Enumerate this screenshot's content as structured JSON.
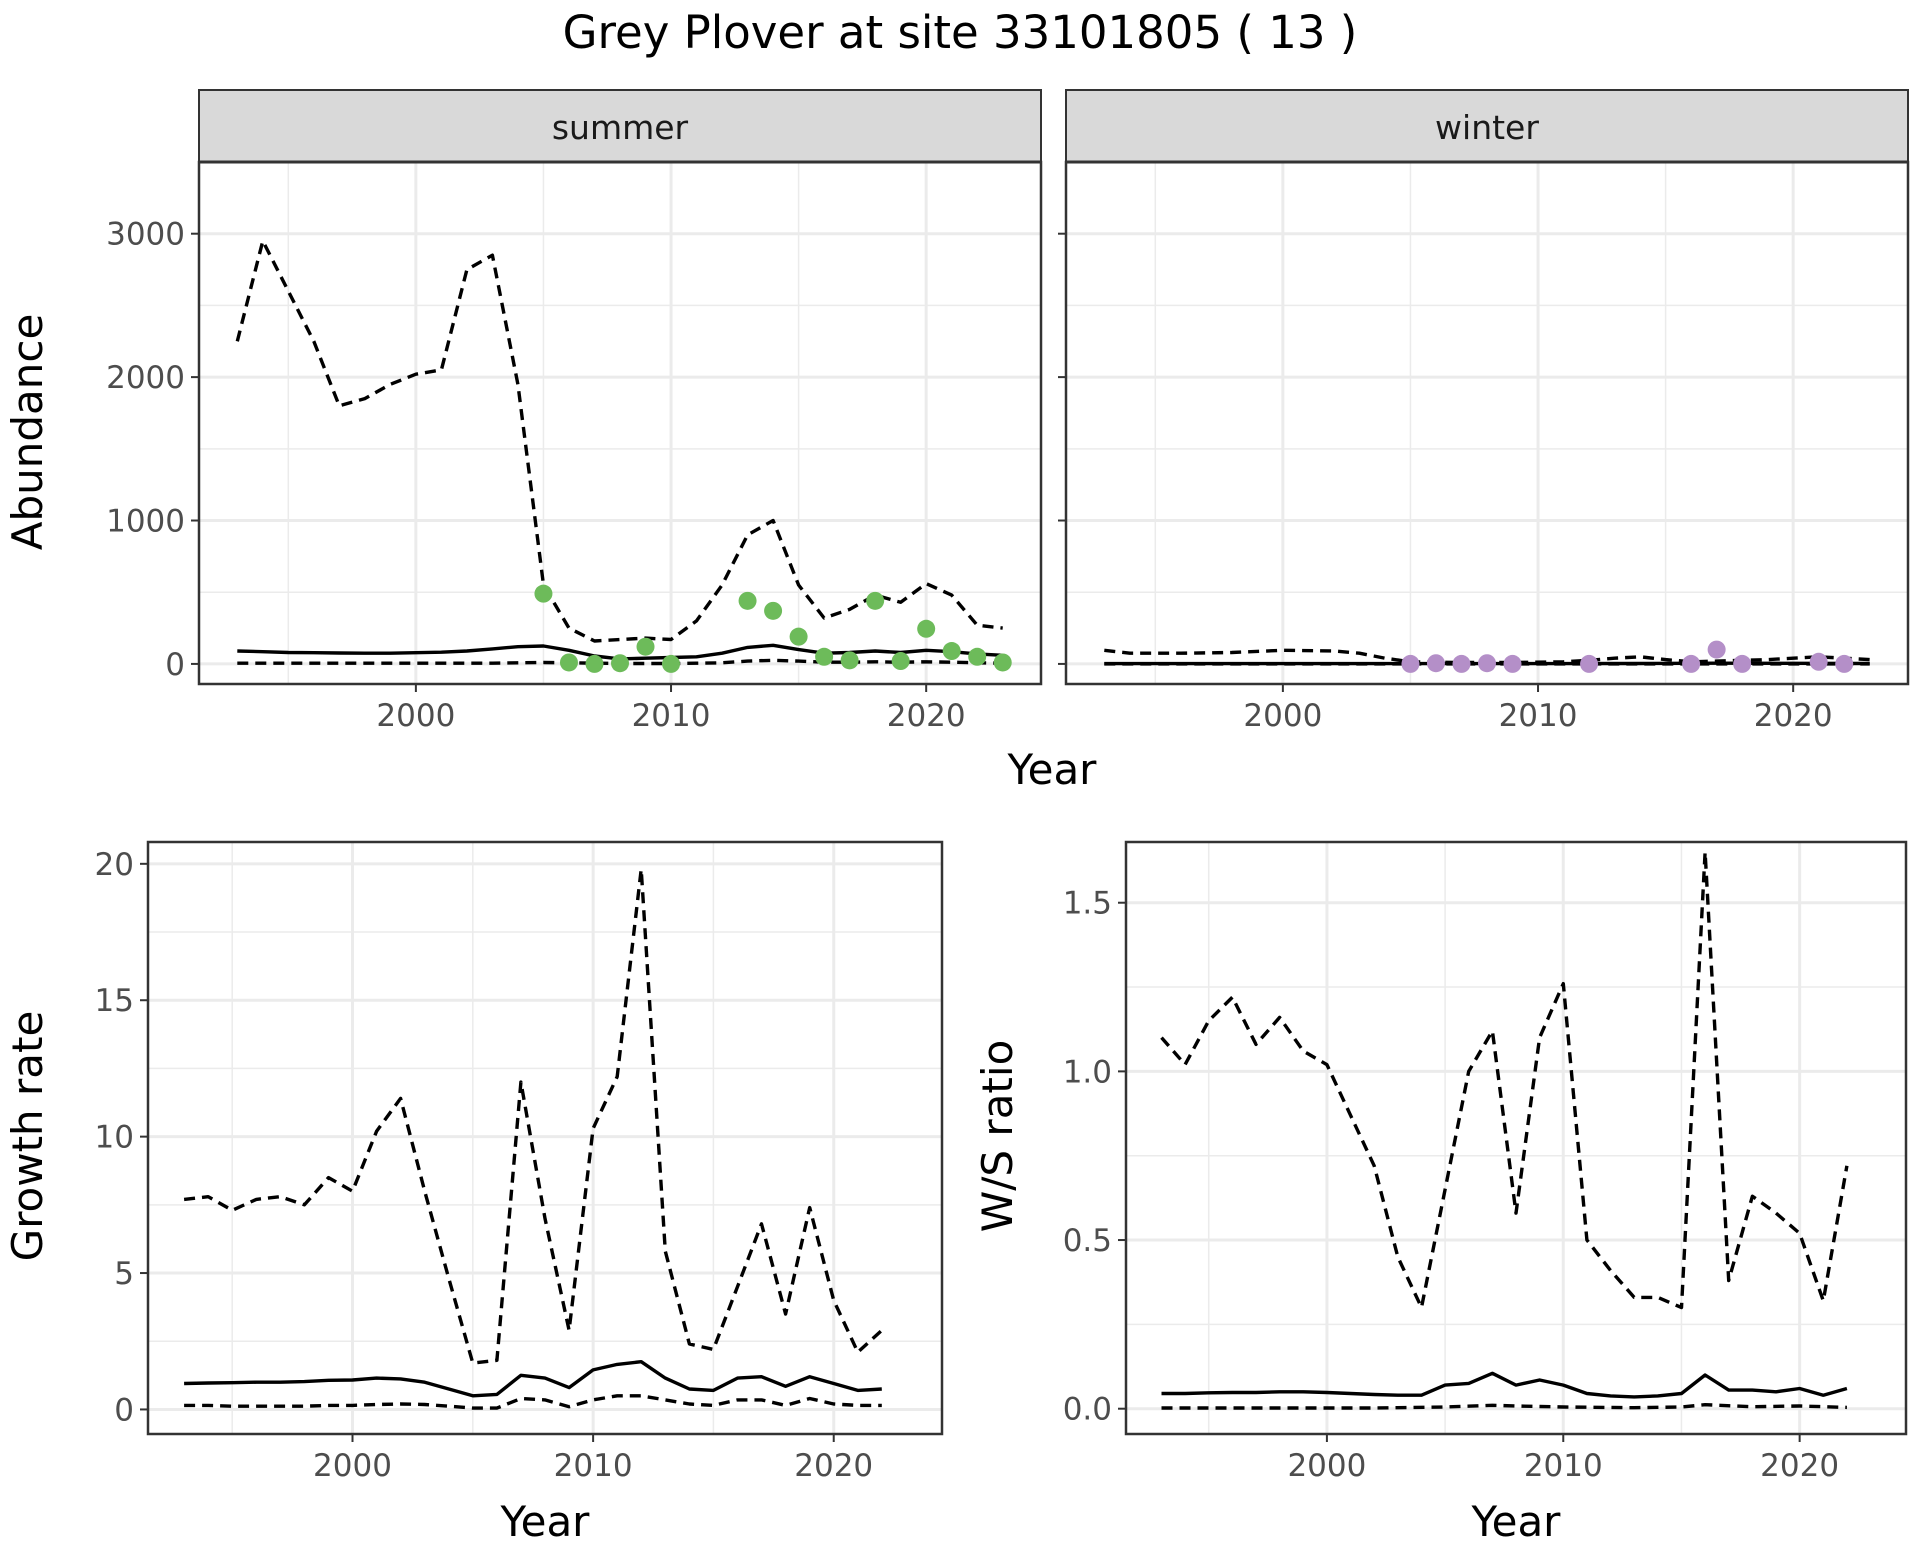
{
  "title": "Grey Plover at site 33101805 ( 13 )",
  "colors": {
    "summer_points": "#6dbb5a",
    "winter_points": "#b48fc8",
    "line": "#000000",
    "strip": "#d9d9d9",
    "grid": "#ebebeb"
  },
  "chart_data": [
    {
      "type": "line",
      "panel": "summer",
      "strip_label": "summer",
      "xlabel": "Year",
      "ylabel": "Abundance",
      "xlim": [
        1991.5,
        2024.5
      ],
      "ylim": [
        -140,
        3500
      ],
      "x_ticks": [
        2000,
        2010,
        2020
      ],
      "x_tick_labels": [
        "2000",
        "2010",
        "2020"
      ],
      "y_ticks": [
        0,
        1000,
        2000,
        3000
      ],
      "y_tick_labels": [
        "0",
        "1000",
        "2000",
        "3000"
      ],
      "series": [
        {
          "style": "solid",
          "x": [
            1993,
            1994,
            1995,
            1996,
            1997,
            1998,
            1999,
            2000,
            2001,
            2002,
            2003,
            2004,
            2005,
            2006,
            2007,
            2008,
            2009,
            2010,
            2011,
            2012,
            2013,
            2014,
            2015,
            2016,
            2017,
            2018,
            2019,
            2020,
            2021,
            2022,
            2023
          ],
          "values": [
            90,
            85,
            80,
            78,
            76,
            75,
            75,
            78,
            82,
            90,
            105,
            120,
            125,
            95,
            55,
            35,
            40,
            45,
            50,
            75,
            115,
            130,
            100,
            75,
            80,
            90,
            80,
            95,
            85,
            70,
            60
          ]
        },
        {
          "style": "dashed",
          "x": [
            1993,
            1994,
            1995,
            1996,
            1997,
            1998,
            1999,
            2000,
            2001,
            2002,
            2003,
            2004,
            2005,
            2006,
            2007,
            2008,
            2009,
            2010,
            2011,
            2012,
            2013,
            2014,
            2015,
            2016,
            2017,
            2018,
            2019,
            2020,
            2021,
            2022,
            2023
          ],
          "values": [
            2250,
            2950,
            2600,
            2250,
            1800,
            1850,
            1950,
            2020,
            2050,
            2750,
            2850,
            1950,
            550,
            250,
            160,
            170,
            180,
            170,
            300,
            550,
            900,
            1000,
            550,
            320,
            380,
            480,
            430,
            560,
            480,
            270,
            250
          ]
        },
        {
          "style": "dashed",
          "x": [
            1993,
            1994,
            1995,
            1996,
            1997,
            1998,
            1999,
            2000,
            2001,
            2002,
            2003,
            2004,
            2005,
            2006,
            2007,
            2008,
            2009,
            2010,
            2011,
            2012,
            2013,
            2014,
            2015,
            2016,
            2017,
            2018,
            2019,
            2020,
            2021,
            2022,
            2023
          ],
          "values": [
            5,
            5,
            5,
            5,
            5,
            5,
            5,
            5,
            5,
            5,
            5,
            8,
            10,
            8,
            5,
            3,
            3,
            3,
            5,
            8,
            20,
            25,
            20,
            12,
            12,
            15,
            12,
            15,
            12,
            8,
            5
          ]
        }
      ],
      "points": {
        "x": [
          2005,
          2006,
          2007,
          2008,
          2009,
          2010,
          2013,
          2014,
          2015,
          2016,
          2017,
          2018,
          2019,
          2020,
          2021,
          2022,
          2023
        ],
        "values": [
          490,
          10,
          0,
          5,
          120,
          0,
          440,
          370,
          190,
          50,
          25,
          440,
          20,
          245,
          90,
          50,
          10
        ]
      }
    },
    {
      "type": "line",
      "panel": "winter",
      "strip_label": "winter",
      "xlabel": "Year",
      "ylabel": "Abundance",
      "xlim": [
        1991.5,
        2024.5
      ],
      "ylim": [
        -140,
        3500
      ],
      "x_ticks": [
        2000,
        2010,
        2020
      ],
      "x_tick_labels": [
        "2000",
        "2010",
        "2020"
      ],
      "y_ticks": [
        0,
        1000,
        2000,
        3000
      ],
      "y_tick_labels": [
        "0",
        "1000",
        "2000",
        "3000"
      ],
      "series": [
        {
          "style": "solid",
          "x": [
            1993,
            1996,
            1999,
            2002,
            2005,
            2008,
            2011,
            2014,
            2017,
            2020,
            2023
          ],
          "values": [
            2,
            2,
            2,
            2,
            2,
            2,
            2,
            3,
            5,
            4,
            3
          ]
        },
        {
          "style": "dashed",
          "x": [
            1993,
            1994,
            1996,
            1998,
            2000,
            2002,
            2003,
            2004,
            2005,
            2007,
            2009,
            2011,
            2012,
            2013,
            2014,
            2015,
            2016,
            2017,
            2018,
            2019,
            2020,
            2021,
            2022,
            2023
          ],
          "values": [
            95,
            75,
            75,
            80,
            95,
            90,
            75,
            40,
            15,
            10,
            10,
            15,
            25,
            40,
            50,
            30,
            15,
            20,
            25,
            30,
            40,
            50,
            40,
            30
          ]
        },
        {
          "style": "dashed",
          "x": [
            1993,
            2023
          ],
          "values": [
            0,
            0
          ]
        }
      ],
      "points": {
        "x": [
          2005,
          2006,
          2007,
          2008,
          2009,
          2012,
          2016,
          2017,
          2018,
          2021,
          2022
        ],
        "values": [
          0,
          5,
          0,
          5,
          0,
          0,
          0,
          100,
          0,
          15,
          0
        ]
      }
    },
    {
      "type": "line",
      "panel": "growth",
      "xlabel": "Year",
      "ylabel": "Growth rate",
      "xlim": [
        1991.5,
        2024.5
      ],
      "ylim": [
        -0.9,
        20.8
      ],
      "x_ticks": [
        2000,
        2010,
        2020
      ],
      "x_tick_labels": [
        "2000",
        "2010",
        "2020"
      ],
      "y_ticks": [
        0,
        5,
        10,
        15,
        20
      ],
      "y_tick_labels": [
        "0",
        "5",
        "10",
        "15",
        "20"
      ],
      "series": [
        {
          "style": "solid",
          "x": [
            1993,
            1994,
            1995,
            1996,
            1997,
            1998,
            1999,
            2000,
            2001,
            2002,
            2003,
            2004,
            2005,
            2006,
            2007,
            2008,
            2009,
            2010,
            2011,
            2012,
            2013,
            2014,
            2015,
            2016,
            2017,
            2018,
            2019,
            2020,
            2021,
            2022
          ],
          "values": [
            0.95,
            0.97,
            0.98,
            1.0,
            1.0,
            1.02,
            1.07,
            1.08,
            1.15,
            1.12,
            1.0,
            0.75,
            0.5,
            0.55,
            1.25,
            1.15,
            0.8,
            1.45,
            1.65,
            1.75,
            1.15,
            0.75,
            0.7,
            1.15,
            1.2,
            0.85,
            1.2,
            0.95,
            0.7,
            0.75
          ]
        },
        {
          "style": "dashed",
          "x": [
            1993,
            1994,
            1995,
            1996,
            1997,
            1998,
            1999,
            2000,
            2001,
            2002,
            2003,
            2004,
            2005,
            2006,
            2007,
            2008,
            2009,
            2010,
            2011,
            2012,
            2013,
            2014,
            2015,
            2016,
            2017,
            2018,
            2019,
            2020,
            2021,
            2022
          ],
          "values": [
            7.7,
            7.8,
            7.3,
            7.7,
            7.8,
            7.5,
            8.5,
            8.0,
            10.2,
            11.4,
            8.0,
            4.8,
            1.7,
            1.8,
            12.0,
            7.0,
            2.9,
            10.3,
            12.2,
            19.8,
            5.8,
            2.4,
            2.2,
            4.5,
            6.8,
            3.5,
            7.4,
            4.0,
            2.1,
            2.9
          ]
        },
        {
          "style": "dashed",
          "x": [
            1993,
            1994,
            1995,
            1996,
            1997,
            1998,
            1999,
            2000,
            2001,
            2002,
            2003,
            2004,
            2005,
            2006,
            2007,
            2008,
            2009,
            2010,
            2011,
            2012,
            2013,
            2014,
            2015,
            2016,
            2017,
            2018,
            2019,
            2020,
            2021,
            2022
          ],
          "values": [
            0.15,
            0.15,
            0.12,
            0.12,
            0.12,
            0.12,
            0.15,
            0.15,
            0.18,
            0.2,
            0.18,
            0.12,
            0.05,
            0.05,
            0.4,
            0.35,
            0.1,
            0.35,
            0.5,
            0.5,
            0.35,
            0.2,
            0.15,
            0.35,
            0.35,
            0.15,
            0.4,
            0.2,
            0.15,
            0.15
          ]
        }
      ]
    },
    {
      "type": "line",
      "panel": "ws_ratio",
      "xlabel": "Year",
      "ylabel": "W/S ratio",
      "xlim": [
        1991.5,
        2024.5
      ],
      "ylim": [
        -0.075,
        1.68
      ],
      "x_ticks": [
        2000,
        2010,
        2020
      ],
      "x_tick_labels": [
        "2000",
        "2010",
        "2020"
      ],
      "y_ticks": [
        0,
        0.5,
        1.0,
        1.5
      ],
      "y_tick_labels": [
        "0.0",
        "0.5",
        "1.0",
        "1.5"
      ],
      "series": [
        {
          "style": "solid",
          "x": [
            1993,
            1994,
            1995,
            1996,
            1997,
            1998,
            1999,
            2000,
            2001,
            2002,
            2003,
            2004,
            2005,
            2006,
            2007,
            2008,
            2009,
            2010,
            2011,
            2012,
            2013,
            2014,
            2015,
            2016,
            2017,
            2018,
            2019,
            2020,
            2021,
            2022
          ],
          "values": [
            0.045,
            0.045,
            0.047,
            0.048,
            0.048,
            0.05,
            0.05,
            0.048,
            0.045,
            0.042,
            0.04,
            0.04,
            0.07,
            0.075,
            0.105,
            0.07,
            0.085,
            0.07,
            0.045,
            0.038,
            0.035,
            0.038,
            0.045,
            0.1,
            0.055,
            0.055,
            0.05,
            0.06,
            0.04,
            0.06
          ]
        },
        {
          "style": "dashed",
          "x": [
            1993,
            1994,
            1995,
            1996,
            1997,
            1998,
            1999,
            2000,
            2001,
            2002,
            2003,
            2004,
            2005,
            2006,
            2007,
            2008,
            2009,
            2010,
            2011,
            2012,
            2013,
            2014,
            2015,
            2016,
            2017,
            2018,
            2019,
            2020,
            2021,
            2022
          ],
          "values": [
            1.1,
            1.02,
            1.15,
            1.22,
            1.08,
            1.16,
            1.06,
            1.02,
            0.87,
            0.72,
            0.45,
            0.3,
            0.65,
            1.0,
            1.12,
            0.58,
            1.1,
            1.26,
            0.5,
            0.41,
            0.33,
            0.33,
            0.3,
            1.65,
            0.38,
            0.63,
            0.58,
            0.52,
            0.32,
            0.72
          ]
        },
        {
          "style": "dashed",
          "x": [
            1993,
            1996,
            1999,
            2002,
            2005,
            2007,
            2008,
            2010,
            2013,
            2015,
            2016,
            2018,
            2020,
            2022
          ],
          "values": [
            0.002,
            0.002,
            0.002,
            0.002,
            0.005,
            0.01,
            0.008,
            0.005,
            0.003,
            0.005,
            0.012,
            0.006,
            0.008,
            0.004
          ]
        }
      ]
    }
  ]
}
